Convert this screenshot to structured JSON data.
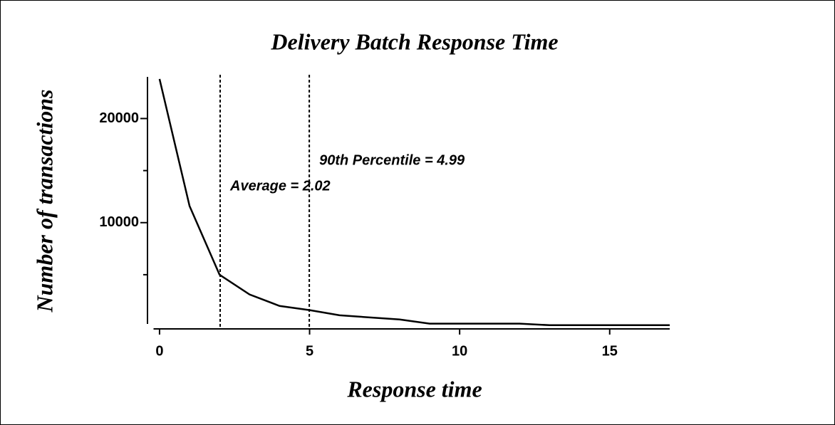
{
  "chart_data": {
    "type": "line",
    "title": "Delivery Batch Response Time",
    "x_label": "Response time",
    "y_label": "Number of transactions",
    "x": [
      0,
      1,
      2,
      3,
      4,
      5,
      6,
      7,
      8,
      9,
      10,
      11,
      12,
      13,
      14,
      15,
      16,
      17
    ],
    "series": [
      {
        "name": "Transactions",
        "color": "#000000",
        "values": [
          23800,
          11600,
          5000,
          3100,
          2000,
          1600,
          1100,
          900,
          700,
          300,
          300,
          300,
          300,
          150,
          150,
          150,
          150,
          150
        ]
      }
    ],
    "xlim": [
      -0.2,
      17
    ],
    "xticks": [
      0,
      5,
      10,
      15
    ],
    "ylim": [
      0,
      24000
    ],
    "yticks": [
      10000,
      20000
    ],
    "minor_yticks": [
      5000,
      15000
    ],
    "reference_lines": [
      {
        "value": 2.02,
        "label": "Average = 2.02"
      },
      {
        "value": 4.99,
        "label": "90th Percentile = 4.99"
      }
    ]
  }
}
